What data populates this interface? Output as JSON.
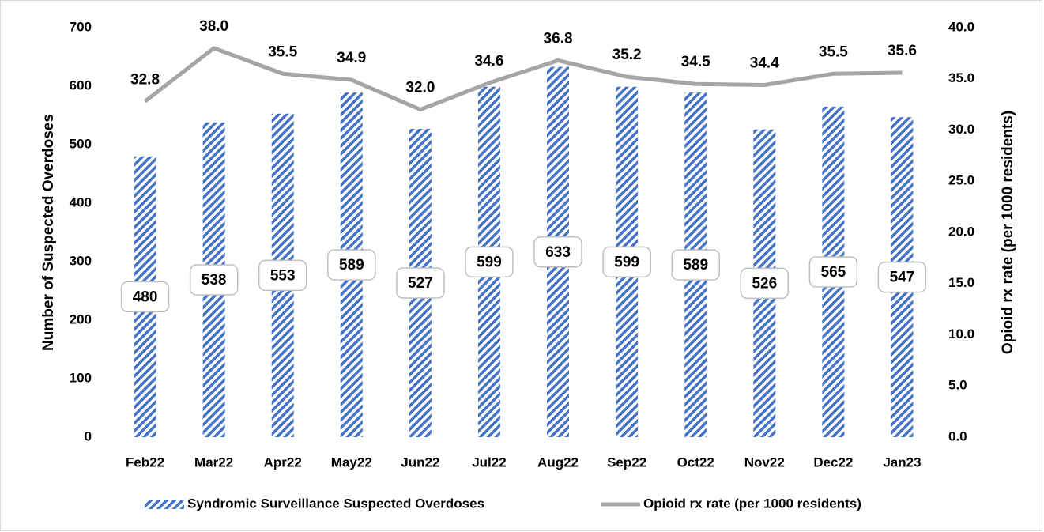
{
  "chart_data": {
    "type": "bar-line",
    "categories": [
      "Feb22",
      "Mar22",
      "Apr22",
      "May22",
      "Jun22",
      "Jul22",
      "Aug22",
      "Sep22",
      "Oct22",
      "Nov22",
      "Dec22",
      "Jan23"
    ],
    "series": [
      {
        "name": "Syndromic Surveillance Suspected Overdoses",
        "type": "bar",
        "color": "#4472c4",
        "hatch": true,
        "values": [
          480,
          538,
          553,
          589,
          527,
          599,
          633,
          599,
          589,
          526,
          565,
          547
        ]
      },
      {
        "name": "Opioid rx rate (per 1000 residents)",
        "type": "line",
        "axis": "y2",
        "color": "#a5a5a5",
        "values": [
          32.8,
          38.0,
          35.5,
          34.9,
          32.0,
          34.6,
          36.8,
          35.2,
          34.5,
          34.4,
          35.5,
          35.6
        ],
        "value_labels": [
          "32.8",
          "38.0",
          "35.5",
          "34.9",
          "32.0",
          "34.6",
          "36.8",
          "35.2",
          "34.5",
          "34.4",
          "35.5",
          "35.6"
        ]
      }
    ],
    "ylabel": "Number of Suspected Overdoses",
    "y2label": "Opioid rx rate (per 1000 residents)",
    "ylim": [
      0,
      700
    ],
    "yticks": [
      0,
      100,
      200,
      300,
      400,
      500,
      600,
      700
    ],
    "y2lim": [
      0,
      40
    ],
    "y2ticks": [
      {
        "value": 0,
        "label": "0.0"
      },
      {
        "value": 5,
        "label": "5.0"
      },
      {
        "value": 10,
        "label": "10.0"
      },
      {
        "value": 15,
        "label": "15.0"
      },
      {
        "value": 20,
        "label": "20.0"
      },
      {
        "value": 25,
        "label": "25.0"
      },
      {
        "value": 30,
        "label": "30.0"
      },
      {
        "value": 35,
        "label": "35.0"
      },
      {
        "value": 40,
        "label": "40.0"
      }
    ],
    "grid": false,
    "legend": "bottom"
  }
}
